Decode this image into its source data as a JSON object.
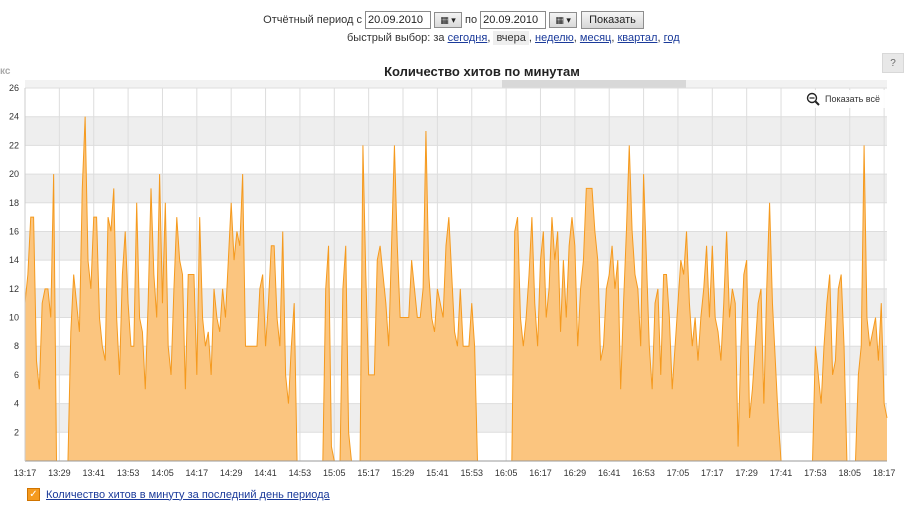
{
  "period": {
    "label_from": "Отчётный период с",
    "from_value": "20.09.2010",
    "label_to": "по",
    "to_value": "20.09.2010",
    "calendar_icon": "calendar-icon",
    "show_button": "Показать"
  },
  "quick_select": {
    "prefix": "быстрый выбор: за",
    "items": [
      {
        "label": "сегодня",
        "current": false
      },
      {
        "label": "вчера",
        "current": true
      },
      {
        "label": "неделю",
        "current": false
      },
      {
        "label": "месяц",
        "current": false
      },
      {
        "label": "квартал",
        "current": false
      },
      {
        "label": "год",
        "current": false
      }
    ]
  },
  "left_fragment": "кс",
  "help": "?",
  "zoom": {
    "label": "Показать всё",
    "icon": "zoom-out-icon"
  },
  "legend": {
    "label": "Количество хитов в минуту за последний день периода",
    "checked": true,
    "check_glyph": "✓"
  },
  "colors": {
    "fill": "#fbc57f",
    "line": "#f59a1e",
    "band": "#eeeeee",
    "grid": "#dddddd"
  },
  "chart_data": {
    "type": "area",
    "title": "Количество хитов по минутам",
    "xlabel": "",
    "ylabel": "",
    "ylim": [
      0,
      26
    ],
    "yticks": [
      2,
      4,
      6,
      8,
      10,
      12,
      14,
      16,
      18,
      20,
      22,
      24,
      26
    ],
    "x_tick_labels": [
      "13:17",
      "13:29",
      "13:41",
      "13:53",
      "14:05",
      "14:17",
      "14:29",
      "14:41",
      "14:53",
      "15:05",
      "15:17",
      "15:29",
      "15:41",
      "15:53",
      "16:05",
      "16:17",
      "16:29",
      "16:41",
      "16:53",
      "17:05",
      "17:17",
      "17:29",
      "17:41",
      "17:53",
      "18:05",
      "18:17"
    ],
    "x_start": "13:17",
    "x_end": "18:27",
    "grid": true,
    "legend_position": "bottom-left",
    "series": [
      {
        "name": "Количество хитов в минуту за последний день периода",
        "values": [
          11,
          13,
          17,
          17,
          7,
          5,
          11,
          12,
          12,
          10,
          20,
          0,
          0,
          0,
          0,
          0,
          9,
          13,
          11,
          9,
          19,
          24,
          14,
          12,
          17,
          17,
          10,
          8,
          7,
          17,
          16,
          19,
          10,
          6,
          13,
          16,
          11,
          8,
          8,
          18,
          10,
          9,
          5,
          11,
          19,
          13,
          10,
          20,
          11,
          18,
          8,
          6,
          12,
          17,
          14,
          13,
          5,
          13,
          13,
          13,
          6,
          17,
          10,
          8,
          9,
          6,
          12,
          10,
          9,
          12,
          10,
          14,
          18,
          14,
          16,
          15,
          20,
          8,
          8,
          8,
          8,
          8,
          12,
          13,
          8,
          11,
          15,
          15,
          10,
          8,
          16,
          6,
          4,
          8,
          11,
          0,
          0,
          0,
          0,
          0,
          0,
          0,
          0,
          0,
          0,
          12,
          15,
          1,
          0,
          0,
          0,
          12,
          15,
          2,
          0,
          0,
          0,
          0,
          22,
          13,
          6,
          6,
          6,
          14,
          15,
          13,
          11,
          8,
          15,
          22,
          15,
          10,
          10,
          10,
          10,
          14,
          12,
          10,
          10,
          12,
          23,
          13,
          10,
          9,
          12,
          11,
          10,
          15,
          17,
          13,
          9,
          8,
          12,
          8,
          8,
          8,
          11,
          8,
          0,
          0,
          0,
          0,
          0,
          0,
          0,
          0,
          0,
          0,
          0,
          0,
          0,
          16,
          17,
          10,
          8,
          10,
          13,
          17,
          11,
          8,
          14,
          16,
          10,
          12,
          17,
          14,
          16,
          9,
          14,
          10,
          15,
          17,
          15,
          8,
          12,
          14,
          19,
          19,
          19,
          16,
          14,
          7,
          8,
          12,
          13,
          15,
          12,
          14,
          5,
          11,
          16,
          22,
          16,
          13,
          12,
          8,
          20,
          14,
          8,
          5,
          11,
          12,
          6,
          13,
          13,
          10,
          5,
          8,
          11,
          14,
          13,
          16,
          11,
          8,
          10,
          7,
          10,
          12,
          15,
          10,
          15,
          10,
          9,
          7,
          11,
          16,
          10,
          12,
          11,
          1,
          8,
          13,
          14,
          3,
          5,
          8,
          11,
          12,
          4,
          12,
          18,
          11,
          7,
          3,
          0,
          0,
          0,
          0,
          0,
          0,
          0,
          0,
          0,
          0,
          0,
          0,
          8,
          6,
          4,
          8,
          11,
          13,
          6,
          7,
          12,
          13,
          8,
          0,
          0,
          0,
          0,
          6,
          8,
          22,
          10,
          8,
          9,
          10,
          7,
          11,
          4,
          3
        ]
      }
    ]
  }
}
